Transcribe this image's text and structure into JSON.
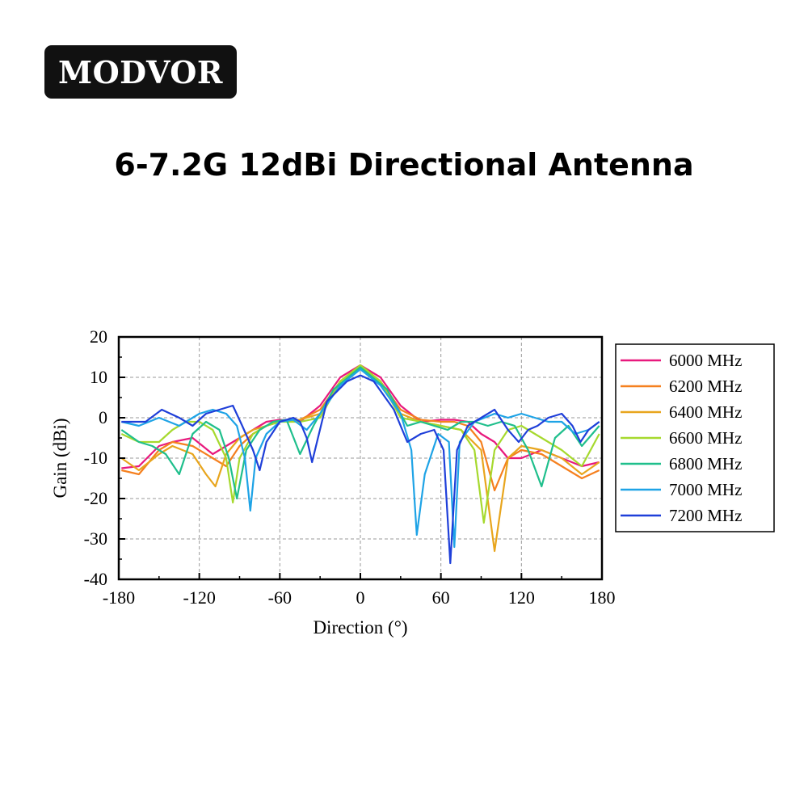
{
  "brand": {
    "name": "MODVOR"
  },
  "title": "6-7.2G 12dBi Directional Antenna",
  "chart_data": {
    "type": "line",
    "xlabel": "Direction (°)",
    "ylabel": "Gain (dBi)",
    "xlim": [
      -180,
      180
    ],
    "ylim": [
      -40,
      20
    ],
    "xticks": [
      "-180",
      "-120",
      "-60",
      "0",
      "60",
      "120",
      "180"
    ],
    "yticks": [
      "20",
      "10",
      "0",
      "-10",
      "-20",
      "-30",
      "-40"
    ],
    "grid": true,
    "legend_position": "right",
    "series": [
      {
        "name": "6000 MHz",
        "color": "#e8197d",
        "x": [
          -178,
          -165,
          -150,
          -140,
          -125,
          -110,
          -95,
          -80,
          -70,
          -60,
          -45,
          -30,
          -15,
          0,
          15,
          30,
          45,
          60,
          70,
          80,
          90,
          100,
          110,
          120,
          135,
          150,
          165,
          178
        ],
        "y": [
          -12.5,
          -12,
          -7,
          -6,
          -5,
          -9,
          -6,
          -3,
          -1,
          -0.5,
          -1,
          3,
          10,
          13,
          10,
          3,
          -1,
          -0.5,
          -0.5,
          -1,
          -4,
          -6,
          -10,
          -10,
          -8,
          -10,
          -12,
          -11
        ]
      },
      {
        "name": "6200 MHz",
        "color": "#f5801f",
        "x": [
          -178,
          -165,
          -150,
          -140,
          -125,
          -110,
          -100,
          -90,
          -80,
          -70,
          -60,
          -45,
          -30,
          -15,
          0,
          15,
          30,
          45,
          60,
          70,
          80,
          90,
          95,
          100,
          110,
          120,
          135,
          150,
          165,
          178
        ],
        "y": [
          -13,
          -14,
          -8,
          -6,
          -7,
          -10,
          -12,
          -7,
          -4,
          -2,
          -1,
          -0.5,
          2,
          9,
          13,
          9,
          2,
          -0.5,
          -1,
          -1,
          -2,
          -6,
          -12,
          -18,
          -10,
          -8,
          -9,
          -12,
          -15,
          -13
        ]
      },
      {
        "name": "6400 MHz",
        "color": "#e8a51d",
        "x": [
          -178,
          -165,
          -150,
          -140,
          -125,
          -115,
          -108,
          -100,
          -90,
          -80,
          -70,
          -60,
          -45,
          -30,
          -15,
          0,
          15,
          30,
          45,
          60,
          75,
          90,
          100,
          110,
          120,
          135,
          150,
          165,
          178
        ],
        "y": [
          -10,
          -13,
          -9,
          -7,
          -9,
          -14,
          -17,
          -9,
          -5,
          -3,
          -2,
          -1,
          -0.5,
          1,
          9,
          13,
          9,
          1,
          -1,
          -2,
          -3,
          -8,
          -33,
          -10,
          -7,
          -8,
          -10,
          -14,
          -11
        ]
      },
      {
        "name": "6600 MHz",
        "color": "#a6d92e",
        "x": [
          -178,
          -165,
          -150,
          -140,
          -130,
          -120,
          -110,
          -100,
          -95,
          -90,
          -80,
          -70,
          -60,
          -45,
          -30,
          -15,
          0,
          15,
          30,
          45,
          60,
          75,
          85,
          92,
          100,
          110,
          120,
          135,
          150,
          165,
          178
        ],
        "y": [
          -4,
          -6,
          -6,
          -3,
          -1,
          -1,
          -3,
          -10,
          -21,
          -10,
          -4,
          -2,
          -1,
          -1,
          0,
          9,
          13,
          9,
          0,
          -1,
          -2,
          -3,
          -8,
          -26,
          -8,
          -3,
          -2,
          -5,
          -8,
          -12,
          -4
        ]
      },
      {
        "name": "6800 MHz",
        "color": "#1fbf8c",
        "x": [
          -178,
          -165,
          -155,
          -145,
          -135,
          -125,
          -115,
          -105,
          -98,
          -92,
          -85,
          -75,
          -65,
          -55,
          -45,
          -35,
          -20,
          0,
          20,
          35,
          45,
          55,
          65,
          75,
          85,
          95,
          105,
          115,
          125,
          135,
          145,
          155,
          165,
          178
        ],
        "y": [
          -3,
          -6,
          -7,
          -9,
          -14,
          -4,
          -1,
          -3,
          -10,
          -20,
          -8,
          -3,
          -1,
          -0.5,
          -9,
          -2,
          7,
          12.5,
          7,
          -2,
          -1,
          -2,
          -3,
          -1,
          -1,
          -2,
          -1,
          -2,
          -8,
          -17,
          -5,
          -2,
          -7,
          -2
        ]
      },
      {
        "name": "7000 MHz",
        "color": "#1ea3e6",
        "x": [
          -178,
          -165,
          -150,
          -135,
          -120,
          -110,
          -100,
          -92,
          -86,
          -82,
          -78,
          -70,
          -60,
          -50,
          -40,
          -30,
          -15,
          0,
          15,
          30,
          38,
          42,
          48,
          58,
          66,
          70,
          74,
          85,
          100,
          110,
          120,
          130,
          140,
          150,
          160,
          170,
          178
        ],
        "y": [
          -1,
          -2,
          0,
          -2,
          1,
          2,
          1,
          -2,
          -10,
          -23,
          -10,
          -4,
          -1,
          -0.5,
          -3,
          1,
          8,
          12,
          8,
          1,
          -8,
          -29,
          -14,
          -4,
          -6,
          -32,
          -6,
          -1,
          1,
          0,
          1,
          0,
          -1,
          -1,
          -4,
          -3,
          -1
        ]
      },
      {
        "name": "7200 MHz",
        "color": "#1f3fd9",
        "x": [
          -178,
          -170,
          -160,
          -148,
          -135,
          -125,
          -115,
          -105,
          -95,
          -88,
          -80,
          -75,
          -70,
          -60,
          -50,
          -45,
          -40,
          -36,
          -25,
          -10,
          0,
          10,
          25,
          35,
          45,
          55,
          62,
          67,
          72,
          80,
          90,
          100,
          110,
          118,
          125,
          132,
          140,
          150,
          158,
          164,
          170,
          178
        ],
        "y": [
          -1,
          -1,
          -1,
          2,
          0,
          -2,
          1,
          2,
          3,
          -2,
          -8,
          -13,
          -6,
          -1,
          0,
          -1,
          -5,
          -11,
          4,
          9,
          10.5,
          9,
          2,
          -6,
          -4,
          -3,
          -8,
          -36,
          -8,
          -2,
          0,
          2,
          -3,
          -6,
          -3,
          -2,
          0,
          1,
          -2,
          -6,
          -3,
          -1
        ]
      }
    ]
  }
}
